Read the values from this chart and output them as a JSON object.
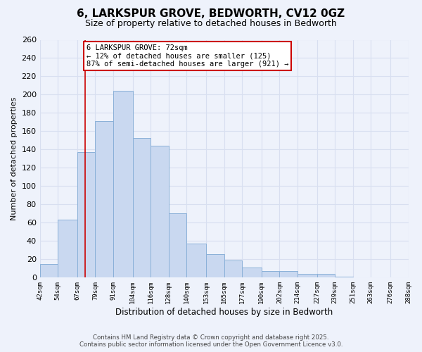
{
  "title": "6, LARKSPUR GROVE, BEDWORTH, CV12 0GZ",
  "subtitle": "Size of property relative to detached houses in Bedworth",
  "xlabel": "Distribution of detached houses by size in Bedworth",
  "ylabel": "Number of detached properties",
  "bar_edges": [
    42,
    54,
    67,
    79,
    91,
    104,
    116,
    128,
    140,
    153,
    165,
    177,
    190,
    202,
    214,
    227,
    239,
    251,
    263,
    276,
    288
  ],
  "bar_heights": [
    15,
    63,
    137,
    171,
    204,
    153,
    144,
    70,
    37,
    26,
    19,
    11,
    7,
    7,
    4,
    4,
    1,
    0,
    0,
    0
  ],
  "bar_color": "#c9d8f0",
  "bar_edge_color": "#8ab0d8",
  "property_line_x": 72,
  "property_line_color": "#cc0000",
  "annotation_title": "6 LARKSPUR GROVE: 72sqm",
  "annotation_line1": "← 12% of detached houses are smaller (125)",
  "annotation_line2": "87% of semi-detached houses are larger (921) →",
  "annotation_box_color": "white",
  "annotation_box_edge_color": "#cc0000",
  "ylim": [
    0,
    260
  ],
  "yticks": [
    0,
    20,
    40,
    60,
    80,
    100,
    120,
    140,
    160,
    180,
    200,
    220,
    240,
    260
  ],
  "tick_labels": [
    "42sqm",
    "54sqm",
    "67sqm",
    "79sqm",
    "91sqm",
    "104sqm",
    "116sqm",
    "128sqm",
    "140sqm",
    "153sqm",
    "165sqm",
    "177sqm",
    "190sqm",
    "202sqm",
    "214sqm",
    "227sqm",
    "239sqm",
    "251sqm",
    "263sqm",
    "276sqm",
    "288sqm"
  ],
  "footer_line1": "Contains HM Land Registry data © Crown copyright and database right 2025.",
  "footer_line2": "Contains public sector information licensed under the Open Government Licence v3.0.",
  "bg_color": "#eef2fb",
  "grid_color": "#d8dff0",
  "title_fontsize": 11,
  "subtitle_fontsize": 9
}
